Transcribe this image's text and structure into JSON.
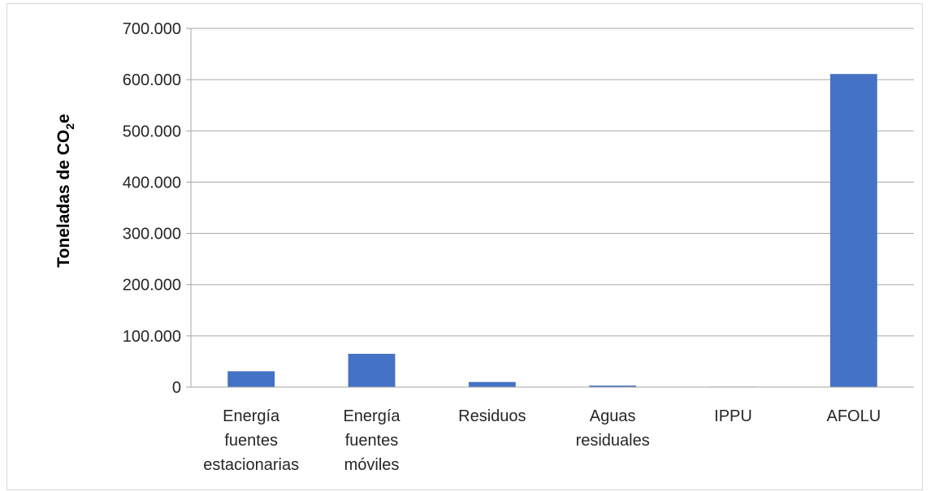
{
  "chart_data": {
    "type": "bar",
    "title": "",
    "xlabel": "",
    "ylabel_main": "Toneladas de  CO",
    "ylabel_sub": "2",
    "ylabel_end": "e",
    "categories": [
      [
        "Energía",
        "fuentes",
        "estacionarias"
      ],
      [
        "Energía",
        "fuentes",
        "móviles"
      ],
      [
        "Residuos"
      ],
      [
        "Aguas",
        "residuales"
      ],
      [
        "IPPU"
      ],
      [
        "AFOLU"
      ]
    ],
    "values": [
      31000,
      65000,
      10000,
      3000,
      1000,
      611000
    ],
    "ylim": [
      0,
      700000
    ],
    "yticks": [
      0,
      100000,
      200000,
      300000,
      400000,
      500000,
      600000,
      700000
    ],
    "ytick_labels": [
      "0",
      "100.000",
      "200.000",
      "300.000",
      "400.000",
      "500.000",
      "600.000",
      "700.000"
    ],
    "grid": true,
    "legend": "none",
    "colors": {
      "bar": "#4472c4",
      "grid": "#a6a6a6",
      "axis": "#a6a6a6"
    }
  }
}
